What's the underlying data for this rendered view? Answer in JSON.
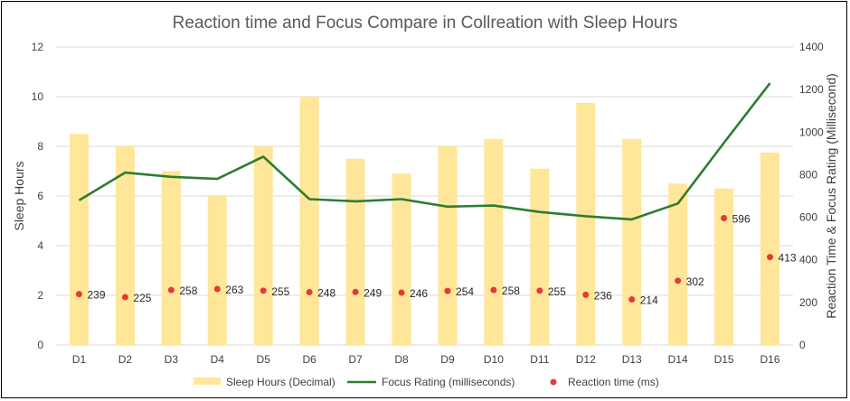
{
  "chart_data": {
    "type": "bar",
    "title": "Reaction time and Focus Compare in Collreation with Sleep Hours",
    "categories": [
      "D1",
      "D2",
      "D3",
      "D4",
      "D5",
      "D6",
      "D7",
      "D8",
      "D9",
      "D10",
      "D11",
      "D12",
      "D13",
      "D14",
      "D15",
      "D16"
    ],
    "y_left": {
      "label": "Sleep Hours",
      "range": [
        0,
        12
      ],
      "ticks": [
        "0",
        "2",
        "4",
        "6",
        "8",
        "10",
        "12"
      ],
      "tick_values": [
        0,
        2,
        4,
        6,
        8,
        10,
        12
      ]
    },
    "y_right": {
      "label": "Reaction Time & Focus Rating (Millisecond)",
      "range": [
        0,
        1400
      ],
      "ticks": [
        "0",
        "200",
        "400",
        "600",
        "800",
        "1000",
        "1200",
        "1400"
      ],
      "tick_values": [
        0,
        200,
        400,
        600,
        800,
        1000,
        1200,
        1400
      ]
    },
    "grid": true,
    "legend_position": "bottom",
    "series": [
      {
        "name": "Sleep Hours (Decimal)",
        "kind": "bar",
        "axis": "left",
        "color": "#FFE699",
        "values": [
          8.5,
          8.0,
          7.0,
          6.0,
          8.0,
          10.0,
          7.5,
          6.9,
          8.0,
          8.3,
          7.1,
          9.75,
          8.3,
          6.5,
          6.3,
          7.75
        ]
      },
      {
        "name": "Focus Rating (milliseconds)",
        "kind": "line",
        "axis": "right",
        "color": "#2E7D32",
        "values": [
          680,
          810,
          790,
          780,
          885,
          685,
          675,
          685,
          650,
          655,
          625,
          605,
          590,
          665,
          950,
          1230
        ]
      },
      {
        "name": "Reaction time (ms)",
        "kind": "scatter",
        "axis": "right",
        "color": "#E53935",
        "values": [
          239,
          225,
          258,
          263,
          255,
          248,
          249,
          246,
          254,
          258,
          255,
          236,
          214,
          302,
          596,
          413
        ],
        "labels": [
          "239",
          "225",
          "258",
          "263",
          "255",
          "248",
          "249",
          "246",
          "254",
          "258",
          "255",
          "236",
          "214",
          "302",
          "596",
          "413"
        ]
      }
    ]
  }
}
